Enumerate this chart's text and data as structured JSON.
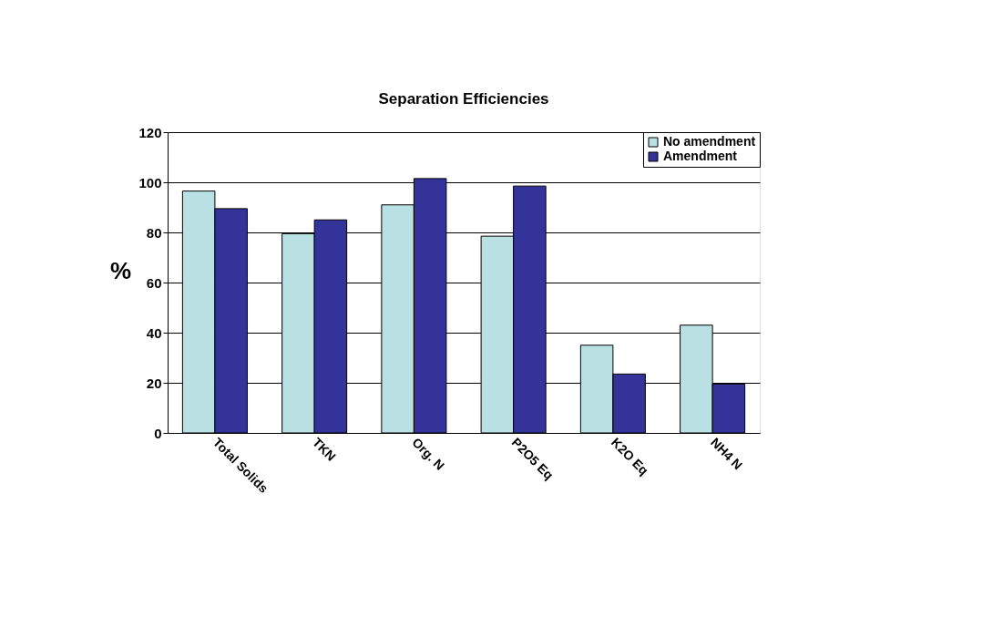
{
  "chart_data": {
    "type": "bar",
    "title": "Separation Efficiencies",
    "ylabel": "%",
    "categories": [
      "Total Solids",
      "TKN",
      "Org. N",
      "P2O5 Eq",
      "K2O Eq",
      "NH4 N"
    ],
    "series": [
      {
        "name": "No amendment",
        "color": "#b9e0e3",
        "values": [
          96.5,
          79.5,
          91,
          78.5,
          35,
          43
        ]
      },
      {
        "name": "Amendment",
        "color": "#333399",
        "values": [
          89.5,
          85,
          101.5,
          98.5,
          23.5,
          19.5
        ]
      }
    ],
    "ylim": [
      0,
      120
    ],
    "yticks": [
      0,
      20,
      40,
      60,
      80,
      100,
      120
    ],
    "grid": "y",
    "legend": "top right"
  }
}
